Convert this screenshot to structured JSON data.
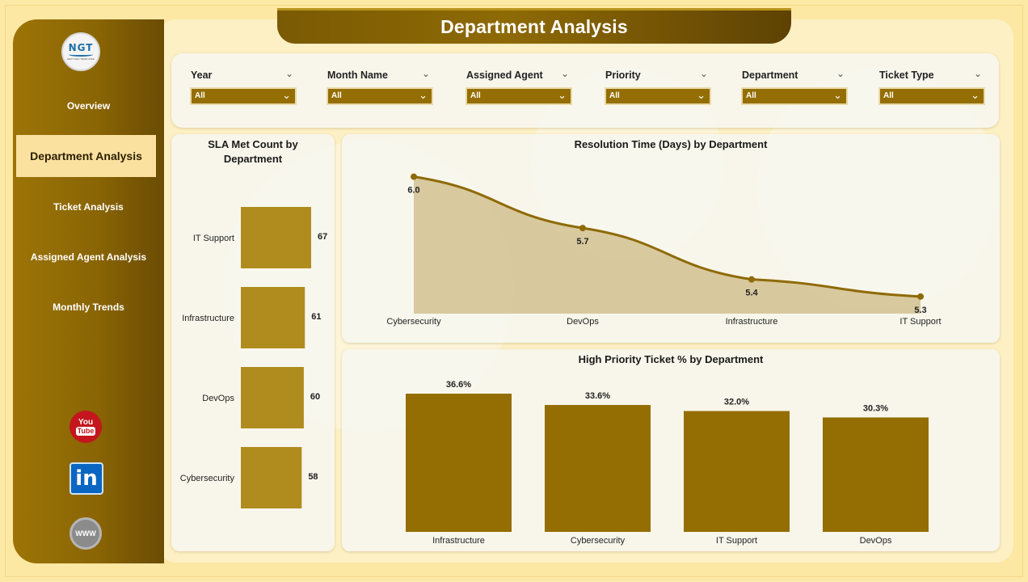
{
  "header": {
    "title": "Department Analysis"
  },
  "sidebar": {
    "logo_text": "NGT",
    "logo_subtext": "NEXT GEN TEMPLATES",
    "items": [
      {
        "label": "Overview",
        "active": false
      },
      {
        "label": "Department Analysis",
        "active": true
      },
      {
        "label": "Ticket Analysis",
        "active": false
      },
      {
        "label": "Assigned Agent Analysis",
        "active": false
      },
      {
        "label": "Monthly Trends",
        "active": false
      }
    ],
    "social": {
      "youtube_top": "You",
      "youtube_bottom": "Tube",
      "linkedin": "in",
      "web": "WWW"
    }
  },
  "filters": [
    {
      "label": "Year",
      "value": "All"
    },
    {
      "label": "Month Name",
      "value": "All"
    },
    {
      "label": "Assigned Agent",
      "value": "All"
    },
    {
      "label": "Priority",
      "value": "All"
    },
    {
      "label": "Department",
      "value": "All"
    },
    {
      "label": "Ticket Type",
      "value": "All"
    }
  ],
  "colors": {
    "accent": "#946e02",
    "bar_light": "#b08c1e",
    "area_fill": "#d4c396",
    "line": "#8f6a05"
  },
  "chart_data": [
    {
      "type": "bar",
      "orientation": "horizontal",
      "title": "SLA Met Count by Department",
      "categories": [
        "IT Support",
        "Infrastructure",
        "DevOps",
        "Cybersecurity"
      ],
      "values": [
        67,
        61,
        60,
        58
      ],
      "data_labels": [
        "67",
        "61",
        "60",
        "58"
      ]
    },
    {
      "type": "area",
      "title": "Resolution Time (Days) by Department",
      "categories": [
        "Cybersecurity",
        "DevOps",
        "Infrastructure",
        "IT Support"
      ],
      "values": [
        6.0,
        5.7,
        5.4,
        5.3
      ],
      "data_labels": [
        "6.0",
        "5.7",
        "5.4",
        "5.3"
      ]
    },
    {
      "type": "bar",
      "title": "High Priority Ticket % by Department",
      "categories": [
        "Infrastructure",
        "Cybersecurity",
        "IT Support",
        "DevOps"
      ],
      "values": [
        36.6,
        33.6,
        32.0,
        30.3
      ],
      "data_labels": [
        "36.6%",
        "33.6%",
        "32.0%",
        "30.3%"
      ]
    }
  ]
}
